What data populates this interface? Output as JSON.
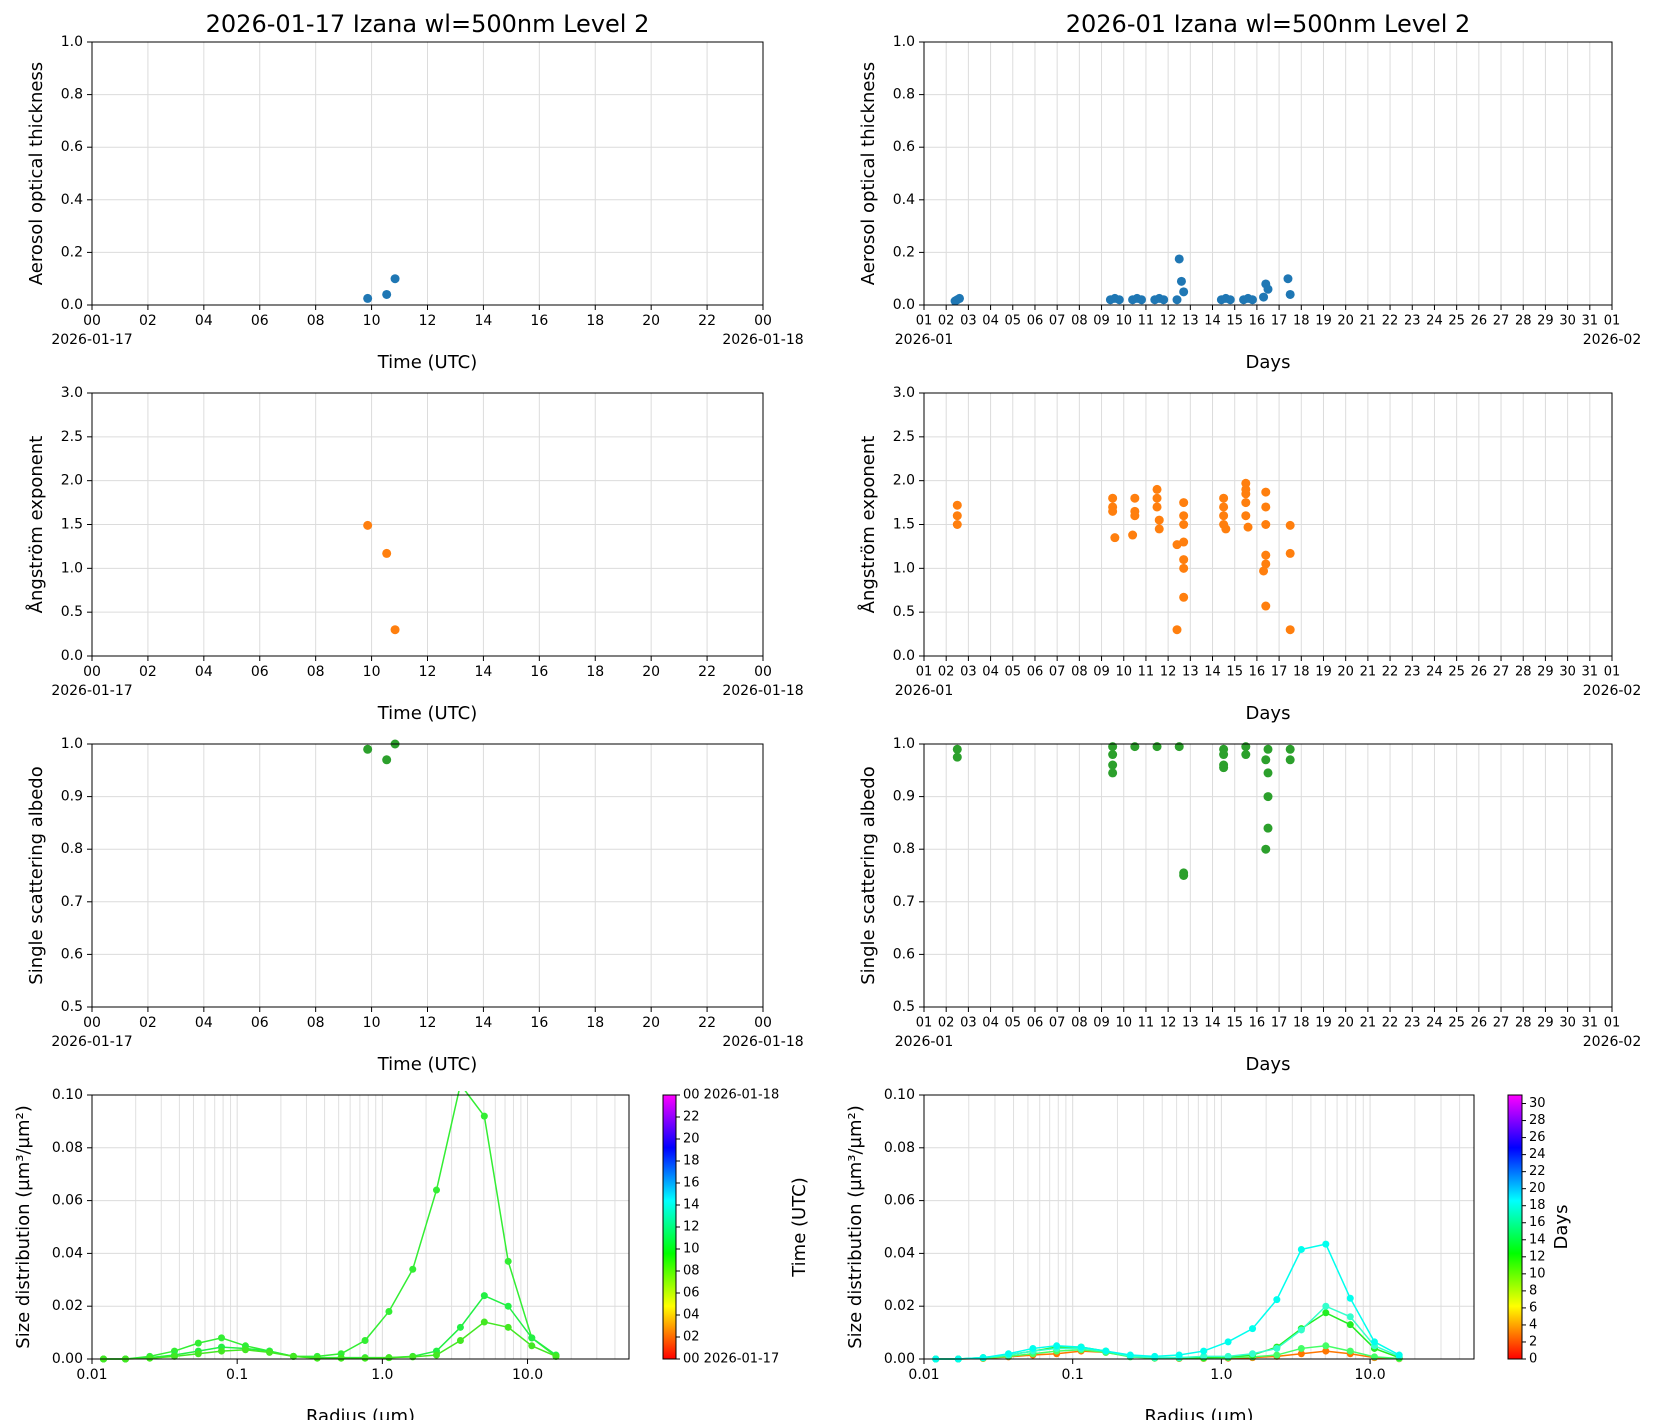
{
  "chart_data": [
    {
      "type": "scatter",
      "title": "2026-01-17  Izana  wl=500nm  Level 2",
      "ylabel": "Aerosol optical thickness",
      "xlabel": "Time (UTC)",
      "xdate_labels": [
        "2026-01-17",
        "2026-01-18"
      ],
      "color": "#1f77b4",
      "grid": true,
      "xlim": [
        0,
        24
      ],
      "xticks": [
        {
          "value": 0,
          "label": "00"
        },
        {
          "value": 2,
          "label": "02"
        },
        {
          "value": 4,
          "label": "04"
        },
        {
          "value": 6,
          "label": "06"
        },
        {
          "value": 8,
          "label": "08"
        },
        10,
        12,
        14,
        16,
        18,
        20,
        22,
        {
          "value": 24,
          "label": "00"
        }
      ],
      "ylim": [
        0,
        1
      ],
      "yticks": [
        {
          "value": 0,
          "label": "0.0"
        },
        0.2,
        0.4,
        0.6,
        0.8,
        {
          "value": 1,
          "label": "1.0"
        }
      ],
      "x": [
        9.86,
        10.54,
        10.84
      ],
      "values": [
        0.025,
        0.04,
        0.1
      ]
    },
    {
      "type": "scatter",
      "title": "2026-01  Izana  wl=500nm  Level 2",
      "ylabel": "Aerosol optical thickness",
      "xlabel": "Days",
      "xdate_labels": [
        "2026-01",
        "2026-02"
      ],
      "color": "#1f77b4",
      "grid": true,
      "xlim": [
        1,
        32
      ],
      "xticks": [
        {
          "value": 1,
          "label": "01"
        },
        {
          "value": 2,
          "label": "02"
        },
        {
          "value": 3,
          "label": "03"
        },
        {
          "value": 4,
          "label": "04"
        },
        {
          "value": 5,
          "label": "05"
        },
        {
          "value": 6,
          "label": "06"
        },
        {
          "value": 7,
          "label": "07"
        },
        {
          "value": 8,
          "label": "08"
        },
        {
          "value": 9,
          "label": "09"
        },
        10,
        11,
        12,
        13,
        14,
        15,
        16,
        17,
        18,
        19,
        20,
        21,
        22,
        23,
        24,
        25,
        26,
        27,
        28,
        29,
        30,
        31,
        {
          "value": 32,
          "label": "01"
        }
      ],
      "ylim": [
        0,
        1
      ],
      "yticks": [
        {
          "value": 0,
          "label": "0.0"
        },
        0.2,
        0.4,
        0.6,
        0.8,
        {
          "value": 1,
          "label": "1.0"
        }
      ],
      "x": [
        2.4,
        2.5,
        2.6,
        9.4,
        9.6,
        9.8,
        10.4,
        10.6,
        10.8,
        11.4,
        11.6,
        11.8,
        12.4,
        12.5,
        12.6,
        12.7,
        14.4,
        14.6,
        14.8,
        15.4,
        15.6,
        15.8,
        16.3,
        16.4,
        16.5,
        17.4,
        17.5
      ],
      "values": [
        0.015,
        0.02,
        0.025,
        0.02,
        0.025,
        0.02,
        0.02,
        0.025,
        0.02,
        0.02,
        0.025,
        0.02,
        0.02,
        0.175,
        0.09,
        0.05,
        0.02,
        0.025,
        0.02,
        0.02,
        0.025,
        0.02,
        0.03,
        0.08,
        0.06,
        0.1,
        0.04
      ]
    },
    {
      "type": "scatter",
      "ylabel": "Ångström exponent",
      "xlabel": "Time (UTC)",
      "xdate_labels": [
        "2026-01-17",
        "2026-01-18"
      ],
      "color": "#ff7f0e",
      "grid": true,
      "xlim": [
        0,
        24
      ],
      "xticks": [
        {
          "value": 0,
          "label": "00"
        },
        {
          "value": 2,
          "label": "02"
        },
        {
          "value": 4,
          "label": "04"
        },
        {
          "value": 6,
          "label": "06"
        },
        {
          "value": 8,
          "label": "08"
        },
        10,
        12,
        14,
        16,
        18,
        20,
        22,
        {
          "value": 24,
          "label": "00"
        }
      ],
      "ylim": [
        0,
        3
      ],
      "yticks": [
        {
          "value": 0,
          "label": "0.0"
        },
        0.5,
        {
          "value": 1,
          "label": "1.0"
        },
        1.5,
        {
          "value": 2,
          "label": "2.0"
        },
        2.5,
        {
          "value": 3,
          "label": "3.0"
        }
      ],
      "x": [
        9.86,
        10.54,
        10.84
      ],
      "values": [
        1.49,
        1.17,
        0.3
      ]
    },
    {
      "type": "scatter",
      "ylabel": "Ångström exponent",
      "xlabel": "Days",
      "xdate_labels": [
        "2026-01",
        "2026-02"
      ],
      "color": "#ff7f0e",
      "grid": true,
      "xlim": [
        1,
        32
      ],
      "xticks": [
        {
          "value": 1,
          "label": "01"
        },
        {
          "value": 2,
          "label": "02"
        },
        {
          "value": 3,
          "label": "03"
        },
        {
          "value": 4,
          "label": "04"
        },
        {
          "value": 5,
          "label": "05"
        },
        {
          "value": 6,
          "label": "06"
        },
        {
          "value": 7,
          "label": "07"
        },
        {
          "value": 8,
          "label": "08"
        },
        {
          "value": 9,
          "label": "09"
        },
        10,
        11,
        12,
        13,
        14,
        15,
        16,
        17,
        18,
        19,
        20,
        21,
        22,
        23,
        24,
        25,
        26,
        27,
        28,
        29,
        30,
        31,
        {
          "value": 32,
          "label": "01"
        }
      ],
      "ylim": [
        0,
        3
      ],
      "yticks": [
        {
          "value": 0,
          "label": "0.0"
        },
        0.5,
        {
          "value": 1,
          "label": "1.0"
        },
        1.5,
        {
          "value": 2,
          "label": "2.0"
        },
        2.5,
        {
          "value": 3,
          "label": "3.0"
        }
      ],
      "x": [
        2.5,
        2.5,
        2.5,
        9.5,
        9.5,
        9.5,
        9.6,
        10.5,
        10.5,
        10.5,
        10.4,
        11.5,
        11.5,
        11.5,
        11.6,
        11.6,
        12.4,
        12.4,
        12.7,
        12.7,
        12.7,
        12.7,
        12.7,
        12.7,
        12.7,
        14.5,
        14.5,
        14.5,
        14.5,
        14.6,
        15.5,
        15.5,
        15.5,
        15.5,
        15.5,
        15.6,
        16.4,
        16.4,
        16.4,
        16.4,
        16.4,
        16.3,
        16.4,
        17.5,
        17.5,
        17.5
      ],
      "values": [
        1.5,
        1.6,
        1.72,
        1.8,
        1.7,
        1.65,
        1.35,
        1.8,
        1.65,
        1.6,
        1.38,
        1.9,
        1.8,
        1.7,
        1.55,
        1.45,
        1.27,
        0.3,
        1.75,
        1.6,
        1.5,
        1.3,
        1.1,
        1.0,
        0.67,
        1.8,
        1.7,
        1.6,
        1.5,
        1.45,
        1.97,
        1.9,
        1.85,
        1.75,
        1.6,
        1.47,
        1.87,
        1.7,
        1.5,
        1.15,
        1.05,
        0.97,
        0.57,
        1.49,
        1.17,
        0.3
      ]
    },
    {
      "type": "scatter",
      "ylabel": "Single scattering albedo",
      "xlabel": "Time (UTC)",
      "xdate_labels": [
        "2026-01-17",
        "2026-01-18"
      ],
      "color": "#2ca02c",
      "grid": true,
      "xlim": [
        0,
        24
      ],
      "xticks": [
        {
          "value": 0,
          "label": "00"
        },
        {
          "value": 2,
          "label": "02"
        },
        {
          "value": 4,
          "label": "04"
        },
        {
          "value": 6,
          "label": "06"
        },
        {
          "value": 8,
          "label": "08"
        },
        10,
        12,
        14,
        16,
        18,
        20,
        22,
        {
          "value": 24,
          "label": "00"
        }
      ],
      "ylim": [
        0.5,
        1
      ],
      "yticks": [
        0.5,
        0.6,
        0.7,
        0.8,
        0.9,
        {
          "value": 1,
          "label": "1.0"
        }
      ],
      "x": [
        9.86,
        10.54,
        10.84
      ],
      "values": [
        0.99,
        0.97,
        1.0
      ]
    },
    {
      "type": "scatter",
      "ylabel": "Single scattering albedo",
      "xlabel": "Days",
      "xdate_labels": [
        "2026-01",
        "2026-02"
      ],
      "color": "#2ca02c",
      "grid": true,
      "xlim": [
        1,
        32
      ],
      "xticks": [
        {
          "value": 1,
          "label": "01"
        },
        {
          "value": 2,
          "label": "02"
        },
        {
          "value": 3,
          "label": "03"
        },
        {
          "value": 4,
          "label": "04"
        },
        {
          "value": 5,
          "label": "05"
        },
        {
          "value": 6,
          "label": "06"
        },
        {
          "value": 7,
          "label": "07"
        },
        {
          "value": 8,
          "label": "08"
        },
        {
          "value": 9,
          "label": "09"
        },
        10,
        11,
        12,
        13,
        14,
        15,
        16,
        17,
        18,
        19,
        20,
        21,
        22,
        23,
        24,
        25,
        26,
        27,
        28,
        29,
        30,
        31,
        {
          "value": 32,
          "label": "01"
        }
      ],
      "ylim": [
        0.5,
        1
      ],
      "yticks": [
        0.5,
        0.6,
        0.7,
        0.8,
        0.9,
        {
          "value": 1,
          "label": "1.0"
        }
      ],
      "x": [
        2.5,
        2.5,
        9.5,
        9.5,
        9.5,
        9.5,
        10.5,
        11.5,
        12.5,
        12.7,
        12.7,
        14.5,
        14.5,
        14.5,
        14.5,
        15.5,
        15.5,
        16.5,
        16.4,
        16.5,
        16.5,
        16.5,
        16.4,
        17.5,
        17.5
      ],
      "values": [
        0.99,
        0.975,
        0.995,
        0.98,
        0.96,
        0.945,
        0.995,
        0.995,
        0.995,
        0.755,
        0.75,
        0.99,
        0.98,
        0.96,
        0.955,
        0.995,
        0.98,
        0.99,
        0.97,
        0.945,
        0.9,
        0.84,
        0.8,
        0.99,
        0.97
      ]
    },
    {
      "type": "line",
      "ylabel": "Size distribution (µm³/µm²)",
      "xlabel": "Radius (µm)",
      "log_x": true,
      "grid": true,
      "minor_grid": true,
      "xlim": [
        0.01,
        50
      ],
      "xticks": [
        0.01,
        0.1,
        {
          "value": 1,
          "label": "1.0"
        },
        {
          "value": 10,
          "label": "10.0"
        }
      ],
      "ylim": [
        0,
        0.1
      ],
      "yticks": [
        {
          "value": 0,
          "label": "0.00"
        },
        0.02,
        0.04,
        0.06,
        0.08,
        {
          "value": 0.1,
          "label": "0.10"
        }
      ],
      "x": [
        0.012,
        0.017,
        0.025,
        0.037,
        0.054,
        0.078,
        0.114,
        0.167,
        0.244,
        0.356,
        0.52,
        0.76,
        1.11,
        1.62,
        2.36,
        3.45,
        5.04,
        7.36,
        10.7,
        15.7
      ],
      "series": [
        {
          "color": "#33ee33",
          "values": [
            0,
            0,
            0.001,
            0.003,
            0.006,
            0.008,
            0.005,
            0.003,
            0.001,
            0.001,
            0.002,
            0.007,
            0.018,
            0.034,
            0.064,
            0.104,
            0.092,
            0.037,
            0.008,
            0.001
          ]
        },
        {
          "color": "#22f044",
          "values": [
            0,
            0,
            0.0005,
            0.0015,
            0.003,
            0.0045,
            0.004,
            0.003,
            0.001,
            0.0005,
            0.0005,
            0.0005,
            0.0005,
            0.001,
            0.003,
            0.012,
            0.024,
            0.02,
            0.008,
            0.0015
          ]
        },
        {
          "color": "#44e822",
          "values": [
            0,
            0,
            0.0003,
            0.001,
            0.002,
            0.003,
            0.0035,
            0.0025,
            0.001,
            0.0003,
            0.0003,
            0.0003,
            0.0005,
            0.0008,
            0.0015,
            0.007,
            0.014,
            0.012,
            0.005,
            0.001
          ]
        }
      ],
      "colorbar": {
        "label": "Time (UTC)",
        "lim": [
          0,
          24
        ],
        "colors": [
          "#ff0000",
          "#ffff00",
          "#00ff00",
          "#00ffff",
          "#0000ff",
          "#ff00ff"
        ],
        "ticks": [
          {
            "value": 0,
            "label": "00 2026-01-17"
          },
          {
            "value": 2,
            "label": "02"
          },
          {
            "value": 4,
            "label": "04"
          },
          {
            "value": 6,
            "label": "06"
          },
          {
            "value": 8,
            "label": "08"
          },
          10,
          12,
          14,
          16,
          18,
          20,
          22,
          {
            "value": 24,
            "label": "00 2026-01-18"
          }
        ]
      }
    },
    {
      "type": "line",
      "ylabel": "Size distribution (µm³/µm²)",
      "xlabel": "Radius (µm)",
      "log_x": true,
      "grid": true,
      "minor_grid": true,
      "xlim": [
        0.01,
        50
      ],
      "xticks": [
        0.01,
        0.1,
        {
          "value": 1,
          "label": "1.0"
        },
        {
          "value": 10,
          "label": "10.0"
        }
      ],
      "ylim": [
        0,
        0.1
      ],
      "yticks": [
        {
          "value": 0,
          "label": "0.00"
        },
        0.02,
        0.04,
        0.06,
        0.08,
        {
          "value": 0.1,
          "label": "0.10"
        }
      ],
      "x": [
        0.012,
        0.017,
        0.025,
        0.037,
        0.054,
        0.078,
        0.114,
        0.167,
        0.244,
        0.356,
        0.52,
        0.76,
        1.11,
        1.62,
        2.36,
        3.45,
        5.04,
        7.36,
        10.7,
        15.7
      ],
      "series": [
        {
          "color": "#ff7700",
          "values": [
            0,
            0,
            0.0002,
            0.0008,
            0.0015,
            0.002,
            0.003,
            0.0025,
            0.001,
            0.0003,
            0.0002,
            0.0002,
            0.0003,
            0.0005,
            0.001,
            0.002,
            0.003,
            0.002,
            0.0005,
            0.0001
          ]
        },
        {
          "color": "#44ff66",
          "values": [
            0,
            0,
            0.0003,
            0.001,
            0.002,
            0.003,
            0.0035,
            0.0025,
            0.0008,
            0.0003,
            0.0003,
            0.0003,
            0.0005,
            0.0008,
            0.0015,
            0.004,
            0.005,
            0.003,
            0.0008,
            0.0002
          ]
        },
        {
          "color": "#22ee22",
          "values": [
            0,
            0,
            0.0005,
            0.0015,
            0.003,
            0.0045,
            0.0045,
            0.003,
            0.001,
            0.0005,
            0.0005,
            0.0005,
            0.0008,
            0.0015,
            0.0045,
            0.0115,
            0.0175,
            0.013,
            0.004,
            0.0005
          ]
        },
        {
          "color": "#33ffcc",
          "values": [
            0,
            0,
            0.0005,
            0.0015,
            0.003,
            0.004,
            0.004,
            0.003,
            0.001,
            0.0005,
            0.0005,
            0.001,
            0.001,
            0.002,
            0.004,
            0.011,
            0.02,
            0.016,
            0.005,
            0.001
          ]
        },
        {
          "color": "#00ffee",
          "values": [
            0,
            0,
            0.0005,
            0.002,
            0.004,
            0.005,
            0.0045,
            0.003,
            0.0015,
            0.001,
            0.0015,
            0.003,
            0.0065,
            0.0115,
            0.0225,
            0.0415,
            0.0435,
            0.023,
            0.0065,
            0.0015
          ]
        }
      ],
      "colorbar": {
        "label": "Days",
        "lim": [
          0,
          31
        ],
        "colors": [
          "#ff0000",
          "#ffff00",
          "#00ff00",
          "#00ffff",
          "#0000ff",
          "#ff00ff"
        ],
        "ticks": [
          0,
          2,
          4,
          6,
          8,
          10,
          12,
          14,
          16,
          18,
          20,
          22,
          24,
          26,
          28,
          30
        ]
      }
    }
  ]
}
